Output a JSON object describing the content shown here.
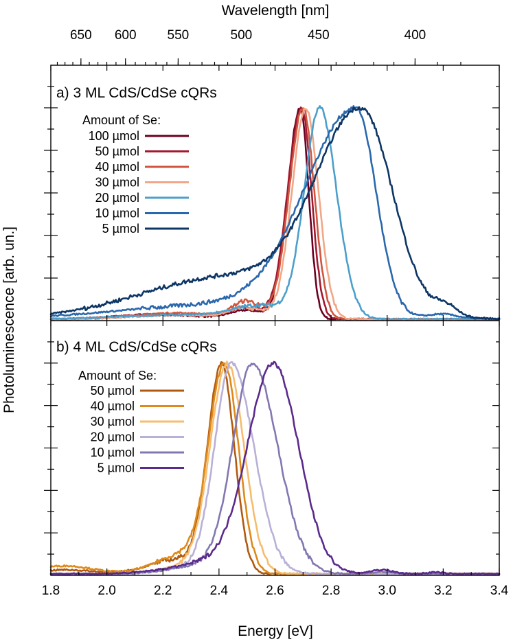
{
  "chart_data": {
    "type": "line",
    "xlabel": "Energy [eV]",
    "top_xlabel": "Wavelength [nm]",
    "ylabel": "Photoluminescence [arb. un.]",
    "xlim": [
      1.8,
      3.4
    ],
    "x_ticks": [
      "1.8",
      "2.0",
      "2.2",
      "2.4",
      "2.6",
      "2.8",
      "3.0",
      "3.2",
      "3.4"
    ],
    "top_ticks": [
      "650",
      "600",
      "550",
      "500",
      "450",
      "400"
    ],
    "panels": [
      {
        "title": "a) 3 ML CdS/CdSe cQRs",
        "legend_title": "Amount of Se:",
        "series": [
          {
            "name": "100 µmol",
            "color": "#6b0021",
            "peak": 2.69,
            "sl": 0.045,
            "sr": 0.03,
            "shoulders": [
              [
                2.5,
                0.04,
                0.06
              ],
              [
                2.2,
                0.02,
                0.15
              ]
            ]
          },
          {
            "name": "50 µmol",
            "color": "#a11a30",
            "peak": 2.695,
            "sl": 0.05,
            "sr": 0.035,
            "shoulders": [
              [
                2.5,
                0.05,
                0.06
              ],
              [
                2.2,
                0.025,
                0.15
              ]
            ]
          },
          {
            "name": "40 µmol",
            "color": "#d0563f",
            "peak": 2.7,
            "sl": 0.05,
            "sr": 0.04,
            "shoulders": [
              [
                2.5,
                0.08,
                0.05
              ],
              [
                2.25,
                0.03,
                0.15
              ]
            ]
          },
          {
            "name": "30 µmol",
            "color": "#f2a686",
            "peak": 2.71,
            "sl": 0.05,
            "sr": 0.045,
            "shoulders": [
              [
                2.5,
                0.05,
                0.06
              ],
              [
                2.25,
                0.02,
                0.15
              ]
            ]
          },
          {
            "name": "20 µmol",
            "color": "#4b9fcb",
            "peak": 2.76,
            "sl": 0.055,
            "sr": 0.06,
            "shoulders": [
              [
                2.55,
                0.06,
                0.1
              ],
              [
                2.25,
                0.02,
                0.2
              ]
            ]
          },
          {
            "name": "10 µmol",
            "color": "#2a68ad",
            "peak": 2.89,
            "sl": 0.18,
            "sr": 0.07,
            "shoulders": [
              [
                2.4,
                0.07,
                0.35
              ],
              [
                3.2,
                0.02,
                0.05
              ]
            ]
          },
          {
            "name": "5 µmol",
            "color": "#0d3565",
            "peak": 2.91,
            "sl": 0.16,
            "sr": 0.11,
            "shoulders": [
              [
                2.45,
                0.22,
                0.32
              ],
              [
                3.21,
                0.05,
                0.04
              ]
            ]
          }
        ]
      },
      {
        "title": "b) 4 ML CdS/CdSe cQRs",
        "legend_title": "Amount of Se:",
        "series": [
          {
            "name": "50 µmol",
            "color": "#b05a0f",
            "peak": 2.41,
            "sl": 0.05,
            "sr": 0.045,
            "shoulders": [
              [
                2.25,
                0.07,
                0.1
              ],
              [
                1.85,
                0.02,
                0.1
              ]
            ]
          },
          {
            "name": "40 µmol",
            "color": "#dd8a1b",
            "peak": 2.42,
            "sl": 0.055,
            "sr": 0.05,
            "shoulders": [
              [
                2.28,
                0.1,
                0.1
              ],
              [
                1.85,
                0.04,
                0.1
              ]
            ]
          },
          {
            "name": "30 µmol",
            "color": "#f6bc6e",
            "peak": 2.43,
            "sl": 0.06,
            "sr": 0.06,
            "shoulders": [
              [
                2.3,
                0.04,
                0.1
              ]
            ]
          },
          {
            "name": "20 µmol",
            "color": "#b9b0d8",
            "peak": 2.445,
            "sl": 0.06,
            "sr": 0.08,
            "shoulders": [
              [
                2.3,
                0.03,
                0.1
              ]
            ]
          },
          {
            "name": "10 µmol",
            "color": "#8377b2",
            "peak": 2.52,
            "sl": 0.07,
            "sr": 0.09,
            "shoulders": [
              [
                2.35,
                0.04,
                0.12
              ],
              [
                2.98,
                0.01,
                0.04
              ]
            ]
          },
          {
            "name": "5 µmol",
            "color": "#5a2a8c",
            "peak": 2.595,
            "sl": 0.09,
            "sr": 0.09,
            "shoulders": [
              [
                2.4,
                0.06,
                0.15
              ],
              [
                2.98,
                0.02,
                0.04
              ],
              [
                3.17,
                0.008,
                0.03
              ]
            ]
          }
        ]
      }
    ]
  }
}
